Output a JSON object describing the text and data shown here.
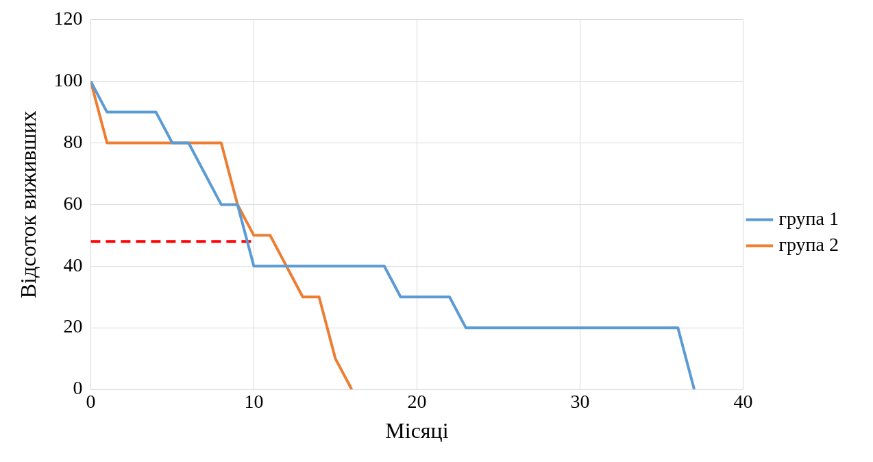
{
  "chart_data": {
    "type": "line",
    "xlabel": "Місяці",
    "ylabel": "Відсоток виживших",
    "xlim": [
      0,
      40
    ],
    "xticks": [
      0,
      10,
      20,
      30,
      40
    ],
    "ylim": [
      0,
      120
    ],
    "yticks": [
      0,
      20,
      40,
      60,
      80,
      100,
      120
    ],
    "grid": true,
    "legend": "right",
    "marker": "none",
    "series": [
      {
        "name": "група 1",
        "color": "#5b9bd5",
        "x": [
          0,
          1,
          4,
          5,
          6,
          8,
          9,
          10,
          18,
          19,
          22,
          23,
          36,
          37
        ],
        "values": [
          100,
          90,
          90,
          80,
          80,
          60,
          60,
          40,
          40,
          30,
          30,
          20,
          20,
          0
        ]
      },
      {
        "name": "група 2",
        "color": "#ed7d31",
        "x": [
          0,
          1,
          8,
          9,
          10,
          11,
          13,
          14,
          15,
          16
        ],
        "values": [
          100,
          80,
          80,
          60,
          50,
          50,
          30,
          30,
          10,
          0
        ]
      },
      {
        "color": "#ff0000",
        "line_style": "dashed",
        "x": [
          0,
          10
        ],
        "values": [
          48,
          48
        ]
      }
    ]
  }
}
